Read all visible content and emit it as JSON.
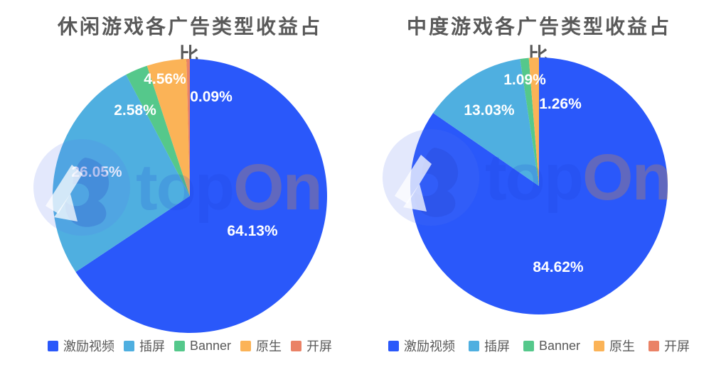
{
  "page": {
    "background": "#FFFFFF"
  },
  "text_colors": {
    "title": "#595959",
    "legend": "#595959",
    "slice_label": "#FFFFFF"
  },
  "watermark": {
    "blue_text": "top",
    "orange_text": "On",
    "blue_color": "#1B3FD6",
    "orange_color": "#F7941D",
    "mark": "topon-circle-logo"
  },
  "chart_data": [
    {
      "type": "pie",
      "title": "休闲游戏各广告类型收益占比",
      "unit": "%",
      "start_angle": "top",
      "direction": "clockwise",
      "legend_position": "bottom",
      "legend": [
        "激励视频",
        "插屏",
        "Banner",
        "原生",
        "开屏"
      ],
      "layout": {
        "radius_frac": 0.4825
      },
      "slices": [
        {
          "name": "激励视频",
          "value": 64.13,
          "label": "64.13%",
          "color": "#2A58FA",
          "label_pos": [
            0.72,
            0.625
          ]
        },
        {
          "name": "插屏",
          "value": 26.05,
          "label": "26.05%",
          "color": "#4FAFE0",
          "label_pos": [
            0.1725,
            0.4175
          ]
        },
        {
          "name": "Banner",
          "value": 2.58,
          "label": "2.58%",
          "color": "#55C88B",
          "label_pos": [
            0.3075,
            0.2
          ]
        },
        {
          "name": "原生",
          "value": 4.56,
          "label": "4.56%",
          "color": "#FBB357",
          "label_pos": [
            0.4125,
            0.09
          ]
        },
        {
          "name": "开屏",
          "value": 0.09,
          "label": "0.09%",
          "color": "#EA8266",
          "label_pos": [
            0.575,
            0.1525
          ]
        }
      ]
    },
    {
      "type": "pie",
      "title": "中度游戏各广告类型收益占比",
      "unit": "%",
      "start_angle": "top",
      "direction": "clockwise",
      "legend_position": "bottom",
      "legend": [
        "激励视频",
        "插屏",
        "Banner",
        "原生",
        "开屏"
      ],
      "layout": {
        "radius_frac": 0.4525
      },
      "slices": [
        {
          "name": "激励视频",
          "value": 84.62,
          "label": "84.62%",
          "color": "#2A58FA",
          "label_pos": [
            0.5675,
            0.7875
          ]
        },
        {
          "name": "插屏",
          "value": 13.03,
          "label": "13.03%",
          "color": "#4FAFE0",
          "label_pos": [
            0.325,
            0.235
          ]
        },
        {
          "name": "Banner",
          "value": 1.09,
          "label": "1.09%",
          "color": "#55C88B",
          "label_pos": [
            0.45,
            0.1275
          ]
        },
        {
          "name": "原生",
          "value": 1.26,
          "label": "1.26%",
          "color": "#FBB357",
          "label_pos": [
            0.575,
            0.2125
          ]
        },
        {
          "name": "开屏",
          "value": 0,
          "label": "",
          "color": "#EA8266",
          "label_pos": null
        }
      ]
    }
  ]
}
